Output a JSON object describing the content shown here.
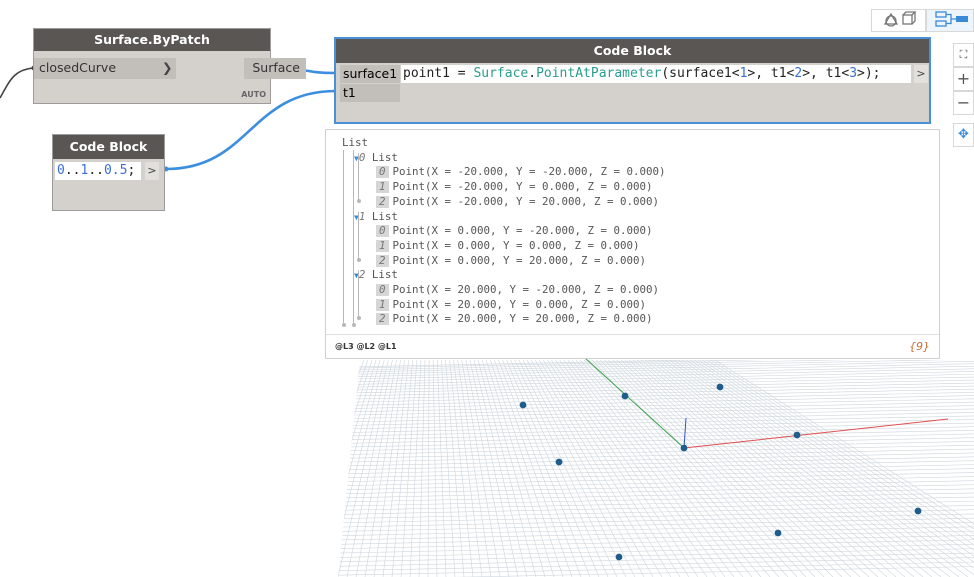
{
  "nodes": {
    "by_patch": {
      "title": "Surface.ByPatch",
      "input": "closedCurve",
      "output": "Surface",
      "badge": "AUTO"
    },
    "code_block_main": {
      "title": "Code Block",
      "inputs": [
        "surface1",
        "t1"
      ],
      "code_parts": [
        "point1 = ",
        "Surface",
        ".",
        "PointAtParameter",
        "(surface1<",
        "1",
        ">, t1<",
        "2",
        ">, t1<",
        "3",
        ">);"
      ],
      "output_arrow": ">"
    },
    "code_block_range": {
      "title": "Code Block",
      "code_parts": [
        "0",
        "..",
        "1",
        "..",
        "0.5",
        ";"
      ],
      "output_arrow": ">"
    }
  },
  "preview": {
    "root": "List",
    "groups": [
      {
        "index": "0",
        "label": "List",
        "items": [
          {
            "index": "0",
            "text": "Point(X = -20.000, Y = -20.000, Z = 0.000)"
          },
          {
            "index": "1",
            "text": "Point(X = -20.000, Y = 0.000, Z = 0.000)"
          },
          {
            "index": "2",
            "text": "Point(X = -20.000, Y = 20.000, Z = 0.000)"
          }
        ]
      },
      {
        "index": "1",
        "label": "List",
        "items": [
          {
            "index": "0",
            "text": "Point(X = 0.000, Y = -20.000, Z = 0.000)"
          },
          {
            "index": "1",
            "text": "Point(X = 0.000, Y = 0.000, Z = 0.000)"
          },
          {
            "index": "2",
            "text": "Point(X = 0.000, Y = 20.000, Z = 0.000)"
          }
        ]
      },
      {
        "index": "2",
        "label": "List",
        "items": [
          {
            "index": "0",
            "text": "Point(X = 20.000, Y = -20.000, Z = 0.000)"
          },
          {
            "index": "1",
            "text": "Point(X = 20.000, Y = 0.000, Z = 0.000)"
          },
          {
            "index": "2",
            "text": "Point(X = 20.000, Y = 20.000, Z = 0.000)"
          }
        ]
      }
    ],
    "levels": "@L3 @L2 @L1",
    "count": "{9}"
  },
  "toolbar": {
    "view_3d_icon": "geometry-view-icon",
    "graph_view_icon": "graph-view-icon",
    "zoom_fit_icon": "zoom-fit-icon",
    "zoom_in": "+",
    "zoom_out": "−",
    "pan_icon": "pan-icon"
  },
  "colors": {
    "wire": "#3b8ee0",
    "node_header": "#5a5654",
    "node_body": "#d4d1cc",
    "selection": "#4a90d9",
    "point": "#1e5c8c",
    "x_axis": "#e05050",
    "y_axis": "#3aa04a",
    "z_axis": "#3050d0"
  }
}
